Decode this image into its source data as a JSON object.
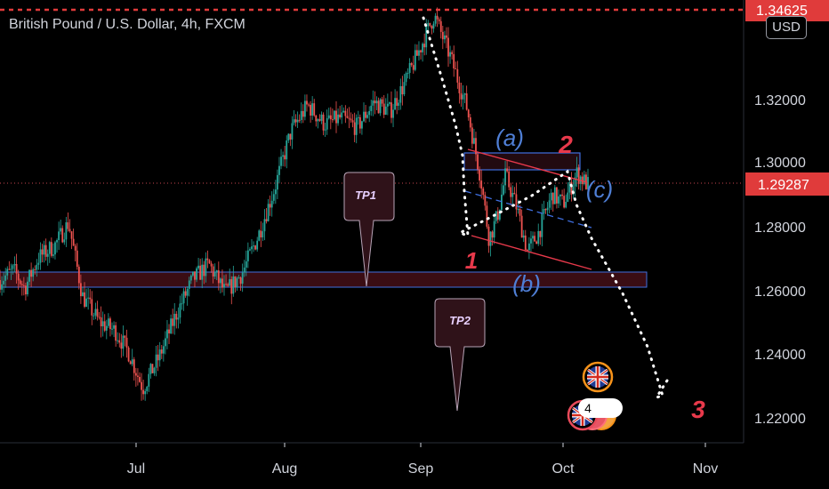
{
  "title": "British Pound / U.S. Dollar, 4h, FXCM",
  "currency_button": "USD",
  "colors": {
    "background": "#000000",
    "candle_up": "#26a69a",
    "candle_down": "#ef5350",
    "price_line": "#e03b3b",
    "zone_border": "#3f6fe0",
    "zone_fill": "#3a0d14",
    "wave_red": "#e8394b",
    "wave_blue": "#4f7fd6"
  },
  "chart_data": {
    "type": "candlestick",
    "title": "British Pound / U.S. Dollar, 4h, FXCM",
    "x_tick_labels": [
      "Jul",
      "Aug",
      "Sep",
      "Oct",
      "Nov"
    ],
    "y_tick_labels": [
      "1.32000",
      "1.30000",
      "1.28000",
      "1.26000",
      "1.24000",
      "1.22000"
    ],
    "ylim": [
      1.213,
      1.349
    ],
    "price_labels": {
      "top": "1.34625",
      "current": "1.29287"
    },
    "close_path": [
      {
        "t": 0,
        "p": 1.263
      },
      {
        "t": 5,
        "p": 1.266
      },
      {
        "t": 9,
        "p": 1.2605
      },
      {
        "t": 14,
        "p": 1.27
      },
      {
        "t": 20,
        "p": 1.274
      },
      {
        "t": 25,
        "p": 1.281
      },
      {
        "t": 30,
        "p": 1.258
      },
      {
        "t": 36,
        "p": 1.25
      },
      {
        "t": 42,
        "p": 1.247
      },
      {
        "t": 47,
        "p": 1.24
      },
      {
        "t": 52,
        "p": 1.229
      },
      {
        "t": 58,
        "p": 1.239
      },
      {
        "t": 64,
        "p": 1.252
      },
      {
        "t": 70,
        "p": 1.263
      },
      {
        "t": 76,
        "p": 1.268
      },
      {
        "t": 82,
        "p": 1.259
      },
      {
        "t": 88,
        "p": 1.265
      },
      {
        "t": 94,
        "p": 1.277
      },
      {
        "t": 100,
        "p": 1.292
      },
      {
        "t": 106,
        "p": 1.31
      },
      {
        "t": 112,
        "p": 1.318
      },
      {
        "t": 118,
        "p": 1.312
      },
      {
        "t": 124,
        "p": 1.314
      },
      {
        "t": 130,
        "p": 1.311
      },
      {
        "t": 136,
        "p": 1.319
      },
      {
        "t": 142,
        "p": 1.316
      },
      {
        "t": 148,
        "p": 1.326
      },
      {
        "t": 153,
        "p": 1.336
      },
      {
        "t": 158,
        "p": 1.3462
      },
      {
        "t": 164,
        "p": 1.333
      },
      {
        "t": 170,
        "p": 1.317
      },
      {
        "t": 175,
        "p": 1.295
      },
      {
        "t": 178,
        "p": 1.276
      },
      {
        "t": 181,
        "p": 1.283
      },
      {
        "t": 184,
        "p": 1.296
      },
      {
        "t": 188,
        "p": 1.286
      },
      {
        "t": 192,
        "p": 1.272
      },
      {
        "t": 196,
        "p": 1.278
      },
      {
        "t": 201,
        "p": 1.29
      },
      {
        "t": 205,
        "p": 1.287
      },
      {
        "t": 210,
        "p": 1.2965
      },
      {
        "t": 214,
        "p": 1.2929
      }
    ],
    "annotations": {
      "take_profit_labels": [
        "TP1",
        "TP2"
      ],
      "wave_labels": [
        "1",
        "2",
        "3",
        "(a)",
        "(b)",
        "(c)"
      ],
      "notes": [
        "4"
      ]
    }
  }
}
